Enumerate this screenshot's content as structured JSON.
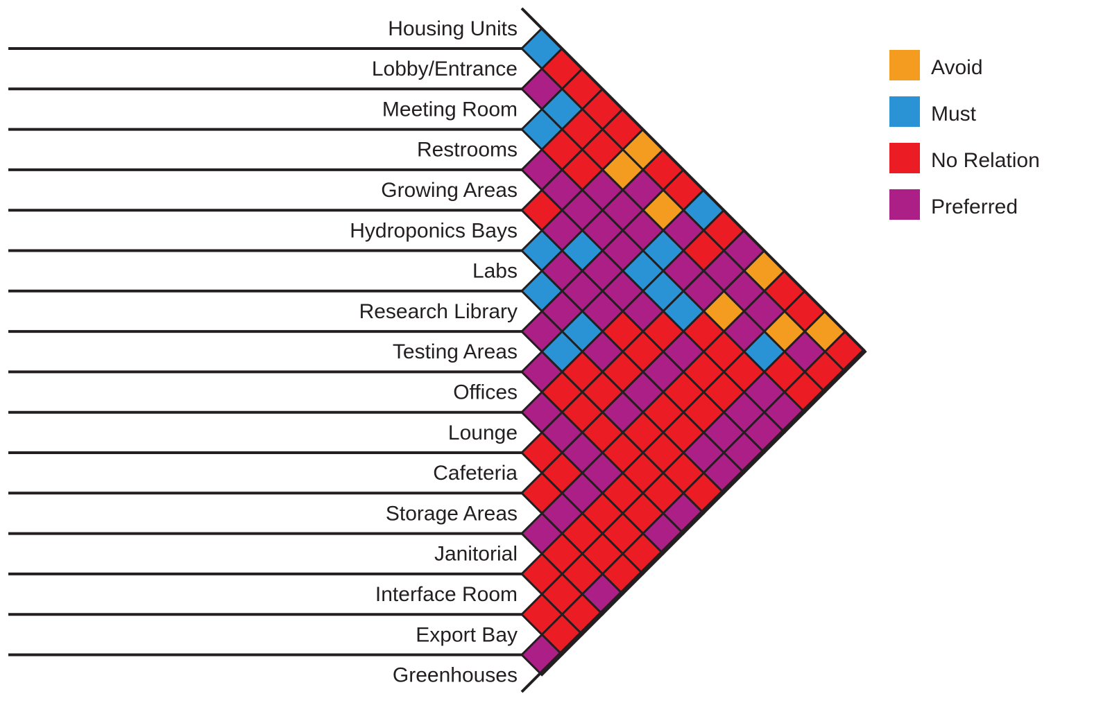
{
  "rooms": [
    "Housing Units",
    "Lobby/Entrance",
    "Meeting Room",
    "Restrooms",
    "Growing Areas",
    "Hydroponics Bays",
    "Labs",
    "Research Library",
    "Testing Areas",
    "Offices",
    "Lounge",
    "Cafeteria",
    "Storage Areas",
    "Janitorial",
    "Interface Room",
    "Export Bay",
    "Greenhouses"
  ],
  "legend": [
    {
      "label": "Avoid",
      "color": "#f49c1f"
    },
    {
      "label": "Must",
      "color": "#2a93d5"
    },
    {
      "label": "No Relation",
      "color": "#ec1c24"
    },
    {
      "label": "Preferred",
      "color": "#ab1f86"
    }
  ],
  "relations": [
    [
      "Must",
      "No Relation",
      "No Relation",
      "No Relation",
      "No Relation",
      "Avoid",
      "No Relation",
      "No Relation",
      "Must",
      "No Relation",
      "Preferred",
      "Avoid",
      "No Relation",
      "No Relation",
      "Avoid",
      "No Relation"
    ],
    [
      "Preferred",
      "Must",
      "No Relation",
      "No Relation",
      "Avoid",
      "Preferred",
      "Avoid",
      "Preferred",
      "No Relation",
      "Preferred",
      "Preferred",
      "Preferred",
      "Avoid",
      "Preferred",
      "No Relation"
    ],
    [
      "Must",
      "No Relation",
      "No Relation",
      "Preferred",
      "Preferred",
      "Preferred",
      "Must",
      "Preferred",
      "Preferred",
      "Avoid",
      "Preferred",
      "Must",
      "No Relation",
      "No Relation"
    ],
    [
      "Preferred",
      "Preferred",
      "Preferred",
      "Preferred",
      "Preferred",
      "Must",
      "Must",
      "Must",
      "No Relation",
      "No Relation",
      "No Relation",
      "Preferred",
      "Preferred"
    ],
    [
      "No Relation",
      "Preferred",
      "Must",
      "Preferred",
      "Preferred",
      "Preferred",
      "No Relation",
      "Preferred",
      "No Relation",
      "No Relation",
      "Preferred",
      "Preferred"
    ],
    [
      "Must",
      "Preferred",
      "Preferred",
      "Preferred",
      "No Relation",
      "No Relation",
      "Preferred",
      "No Relation",
      "No Relation",
      "Preferred",
      "Preferred"
    ],
    [
      "Must",
      "Preferred",
      "Must",
      "Preferred",
      "No Relation",
      "Preferred",
      "No Relation",
      "No Relation",
      "Preferred",
      "Preferred"
    ],
    [
      "Preferred",
      "Must",
      "No Relation",
      "No Relation",
      "Preferred",
      "No Relation",
      "No Relation",
      "No Relation",
      "No Relation"
    ],
    [
      "Preferred",
      "No Relation",
      "No Relation",
      "No Relation",
      "No Relation",
      "No Relation",
      "No Relation",
      "Preferred"
    ],
    [
      "Preferred",
      "Preferred",
      "Preferred",
      "Preferred",
      "No Relation",
      "No Relation",
      "Preferred"
    ],
    [
      "No Relation",
      "No Relation",
      "Preferred",
      "No Relation",
      "No Relation",
      "No Relation"
    ],
    [
      "No Relation",
      "Preferred",
      "No Relation",
      "No Relation",
      "No Relation"
    ],
    [
      "Preferred",
      "No Relation",
      "No Relation",
      "Preferred"
    ],
    [
      "No Relation",
      "No Relation",
      "No Relation"
    ],
    [
      "No Relation",
      "No Relation"
    ],
    [
      "Preferred"
    ]
  ]
}
